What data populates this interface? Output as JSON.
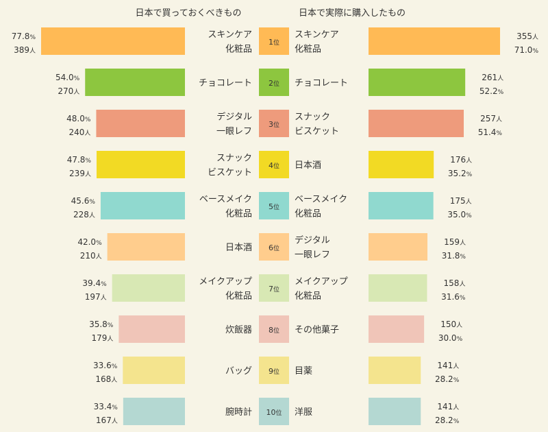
{
  "chart_data": [
    {
      "type": "bar",
      "orientation": "horizontal",
      "direction": "right-to-left",
      "title": "日本で買っておくべきもの",
      "categories": [
        "スキンケア\n化粧品",
        "チョコレート",
        "デジタル\n一眼レフ",
        "スナック\nビスケット",
        "ベースメイク\n化粧品",
        "日本酒",
        "メイクアップ\n化粧品",
        "炊飯器",
        "バッグ",
        "腕時計"
      ],
      "series": [
        {
          "values": [
            77.8,
            54.0,
            48.0,
            47.8,
            45.6,
            42.0,
            39.4,
            35.8,
            33.6,
            33.4
          ],
          "unit": "%"
        },
        {
          "values": [
            389,
            270,
            240,
            239,
            228,
            210,
            197,
            179,
            168,
            167
          ],
          "unit": "人"
        }
      ],
      "xlim": [
        0,
        77.8
      ],
      "colors": [
        "#ffba55",
        "#8dc63f",
        "#ee9b7c",
        "#f2da24",
        "#90d9cf",
        "#ffcd8d",
        "#d8e8b4",
        "#f0c5b8",
        "#f4e48e",
        "#b4d8d2"
      ]
    },
    {
      "type": "bar",
      "orientation": "horizontal",
      "direction": "left-to-right",
      "title": "日本で実際に購入したもの",
      "categories": [
        "スキンケア\n化粧品",
        "チョコレート",
        "スナック\nビスケット",
        "日本酒",
        "ベースメイク\n化粧品",
        "デジタル\n一眼レフ",
        "メイクアップ\n化粧品",
        "その他菓子",
        "目薬",
        "洋服"
      ],
      "series": [
        {
          "values": [
            355,
            261,
            257,
            176,
            175,
            159,
            158,
            150,
            141,
            141
          ],
          "unit": "人"
        },
        {
          "values": [
            71.0,
            52.2,
            51.4,
            35.2,
            35.0,
            31.8,
            31.6,
            30.0,
            28.2,
            28.2
          ],
          "unit": "%"
        }
      ],
      "xlim": [
        0,
        71.0
      ],
      "colors": [
        "#ffba55",
        "#8dc63f",
        "#ee9b7c",
        "#f2da24",
        "#90d9cf",
        "#ffcd8d",
        "#d8e8b4",
        "#f0c5b8",
        "#f4e48e",
        "#b4d8d2"
      ]
    }
  ],
  "ranks": [
    "1",
    "2",
    "3",
    "4",
    "5",
    "6",
    "7",
    "8",
    "9",
    "10"
  ],
  "rank_suffix": "位"
}
